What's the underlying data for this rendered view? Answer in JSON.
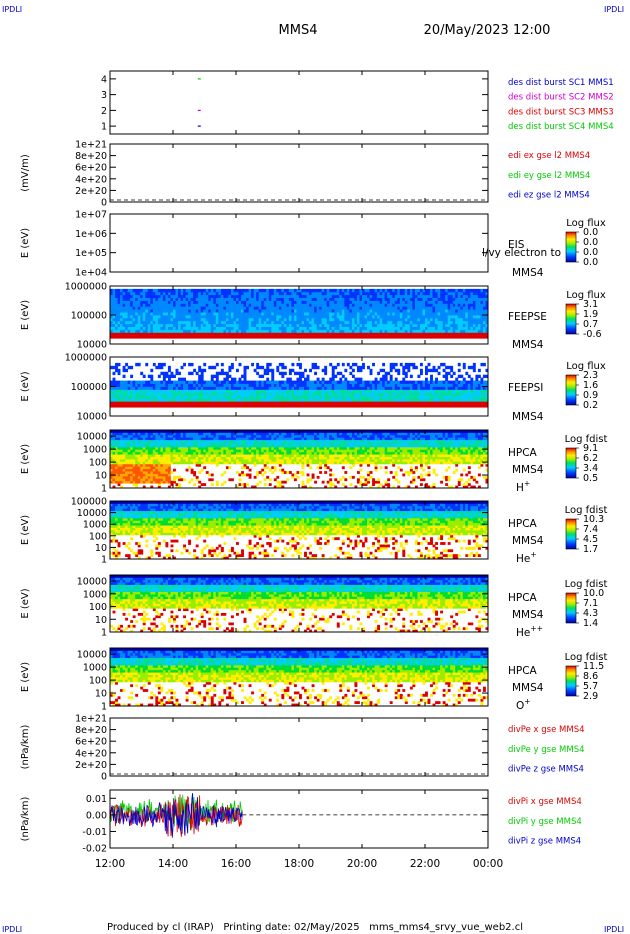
{
  "corner": {
    "tl": "IPDLI",
    "tr": "IPDLI",
    "bl": "IPDLI",
    "br": "IPDLI"
  },
  "header": {
    "title": "MMS4",
    "datetime": "20/May/2023 12:00"
  },
  "footer": {
    "text": "Produced by cl (IRAP)   Printing date: 02/May/2025   mms_mms4_srvy_vue_web2.cl"
  },
  "colors": {
    "blue": "#0000cc",
    "magenta": "#cc00cc",
    "red": "#dd0000",
    "green": "#00cc00",
    "black": "#000000"
  },
  "chart_data": [
    {
      "type": "scatter",
      "id": "burst",
      "yticks": [
        "1",
        "2",
        "3",
        "4"
      ],
      "ylim": [
        0.5,
        4.5
      ],
      "legend": [
        {
          "label": "des dist burst SC1 MMS1",
          "color": "#0000cc"
        },
        {
          "label": "des dist burst SC2 MMS2",
          "color": "#cc00cc"
        },
        {
          "label": "des dist burst SC3 MMS3",
          "color": "#dd0000"
        },
        {
          "label": "des dist burst SC4 MMS4",
          "color": "#00cc00"
        }
      ],
      "points": [
        {
          "x": "14:50",
          "y": 4,
          "color": "#00cc00"
        },
        {
          "x": "14:50",
          "y": 2,
          "color": "#cc00cc"
        },
        {
          "x": "14:50",
          "y": 1,
          "color": "#0000cc"
        }
      ]
    },
    {
      "type": "line",
      "id": "edi",
      "ylabel": "(mV/m)",
      "yticks": [
        "0",
        "2e+20",
        "4e+20",
        "6e+20",
        "8e+20",
        "1e+21"
      ],
      "ylim": [
        0,
        1e+21
      ],
      "legend": [
        {
          "label": "edi ex gse l2 MMS4",
          "color": "#dd0000"
        },
        {
          "label": "edi ey gse l2 MMS4",
          "color": "#00cc00"
        },
        {
          "label": "edi ez gse l2 MMS4",
          "color": "#0000cc"
        }
      ]
    },
    {
      "type": "heatmap",
      "id": "eis",
      "ylabel": "E (eV)",
      "yticks": [
        "1e+04",
        "1e+05",
        "1e+06",
        "1e+07"
      ],
      "ylim": [
        10000.0,
        10000000.0
      ],
      "instrument": "EIS",
      "extra_label": "l/vy electron to",
      "sc": "MMS4",
      "colorbar": {
        "title": "Log flux",
        "ticks": [
          "0.0",
          "0.0",
          "0.0",
          "0.0"
        ]
      }
    },
    {
      "type": "heatmap",
      "id": "feepse",
      "ylabel": "E (eV)",
      "yticks": [
        "10000",
        "100000",
        "1000000"
      ],
      "ylim": [
        10000.0,
        1000000.0
      ],
      "instrument": "FEEPSE",
      "sc": "MMS4",
      "colorbar": {
        "title": "Log flux",
        "ticks": [
          "3.1",
          "1.9",
          "0.7",
          "-0.6"
        ]
      }
    },
    {
      "type": "heatmap",
      "id": "feepsi",
      "ylabel": "E (eV)",
      "yticks": [
        "10000",
        "100000",
        "1000000"
      ],
      "ylim": [
        10000.0,
        1000000.0
      ],
      "instrument": "FEEPSI",
      "sc": "MMS4",
      "colorbar": {
        "title": "Log flux",
        "ticks": [
          "2.3",
          "1.6",
          "0.9",
          "0.2"
        ]
      }
    },
    {
      "type": "heatmap",
      "id": "hpca_h",
      "ylabel": "E (eV)",
      "yticks": [
        "1",
        "10",
        "100",
        "1000",
        "10000"
      ],
      "ylim": [
        1,
        30000
      ],
      "instrument": "HPCA",
      "sc": "MMS4",
      "species": "H",
      "charge": "+",
      "colorbar": {
        "title": "Log fdist",
        "ticks": [
          "9.1",
          "6.2",
          "3.4",
          "0.5"
        ]
      }
    },
    {
      "type": "heatmap",
      "id": "hpca_he",
      "ylabel": "E (eV)",
      "yticks": [
        "1",
        "10",
        "100",
        "1000",
        "10000",
        "100000"
      ],
      "ylim": [
        1,
        100000
      ],
      "instrument": "HPCA",
      "sc": "MMS4",
      "species": "He",
      "charge": "+",
      "colorbar": {
        "title": "Log fdist",
        "ticks": [
          "10.3",
          "7.4",
          "4.5",
          "1.7"
        ]
      }
    },
    {
      "type": "heatmap",
      "id": "hpca_hepp",
      "ylabel": "E (eV)",
      "yticks": [
        "1",
        "10",
        "100",
        "1000",
        "10000"
      ],
      "ylim": [
        1,
        30000
      ],
      "instrument": "HPCA",
      "sc": "MMS4",
      "species": "He",
      "charge": "++",
      "colorbar": {
        "title": "Log fdist",
        "ticks": [
          "10.0",
          "7.1",
          "4.3",
          "1.4"
        ]
      }
    },
    {
      "type": "heatmap",
      "id": "hpca_o",
      "ylabel": "E (eV)",
      "yticks": [
        "1",
        "10",
        "100",
        "1000",
        "10000"
      ],
      "ylim": [
        1,
        30000
      ],
      "instrument": "HPCA",
      "sc": "MMS4",
      "species": "O",
      "charge": "+",
      "colorbar": {
        "title": "Log fdist",
        "ticks": [
          "11.5",
          "8.6",
          "5.7",
          "2.9"
        ]
      }
    },
    {
      "type": "line",
      "id": "divpe",
      "ylabel": "(nPa/km)",
      "yticks": [
        "0",
        "2e+20",
        "4e+20",
        "6e+20",
        "8e+20",
        "1e+21"
      ],
      "ylim": [
        0,
        1e+21
      ],
      "legend": [
        {
          "label": "divPe x gse MMS4",
          "color": "#dd0000"
        },
        {
          "label": "divPe y gse MMS4",
          "color": "#00cc00"
        },
        {
          "label": "divPe z gse MMS4",
          "color": "#0000cc"
        }
      ]
    },
    {
      "type": "line",
      "id": "divpi",
      "ylabel": "(nPa/km)",
      "yticks": [
        "-0.02",
        "-0.01",
        "0.00",
        "0.01"
      ],
      "ylim": [
        -0.02,
        0.015
      ],
      "data_end": "16:12",
      "legend": [
        {
          "label": "divPi x gse MMS4",
          "color": "#dd0000"
        },
        {
          "label": "divPi y gse MMS4",
          "color": "#00cc00"
        },
        {
          "label": "divPi z gse MMS4",
          "color": "#0000cc"
        }
      ]
    }
  ],
  "xaxis": {
    "ticks": [
      "12:00",
      "14:00",
      "16:00",
      "18:00",
      "20:00",
      "22:00",
      "00:00"
    ],
    "xlim": [
      "12:00",
      "00:00"
    ]
  }
}
